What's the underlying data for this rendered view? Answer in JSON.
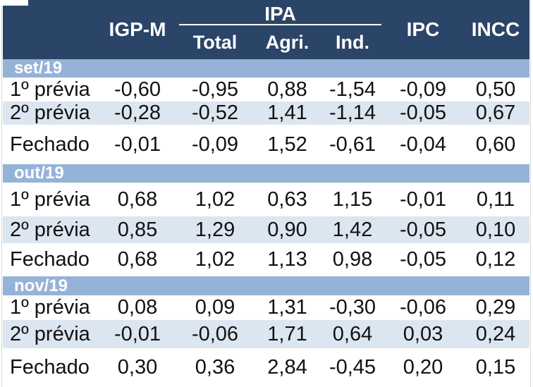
{
  "table": {
    "header": {
      "igpm": "IGP-M",
      "ipa_group": "IPA",
      "ipa_total": "Total",
      "ipa_agri": "Agri.",
      "ipa_ind": "Ind.",
      "ipc": "IPC",
      "incc": "INCC"
    },
    "sections": [
      {
        "month": "set/19",
        "rows": [
          {
            "label": "1º prévia",
            "values": [
              "-0,60",
              "-0,95",
              "0,88",
              "-1,54",
              "-0,09",
              "0,50"
            ]
          },
          {
            "label": "2º prévia",
            "values": [
              "-0,28",
              "-0,52",
              "1,41",
              "-1,14",
              "-0,05",
              "0,67"
            ]
          },
          {
            "label": "Fechado",
            "values": [
              "-0,01",
              "-0,09",
              "1,52",
              "-0,61",
              "-0,04",
              "0,60"
            ]
          }
        ]
      },
      {
        "month": "out/19",
        "rows": [
          {
            "label": "1º prévia",
            "values": [
              "0,68",
              "1,02",
              "0,63",
              "1,15",
              "-0,01",
              "0,11"
            ]
          },
          {
            "label": "2º prévia",
            "values": [
              "0,85",
              "1,29",
              "0,90",
              "1,42",
              "-0,05",
              "0,10"
            ]
          },
          {
            "label": "Fechado",
            "values": [
              "0,68",
              "1,02",
              "1,13",
              "0,98",
              "-0,05",
              "0,12"
            ]
          }
        ]
      },
      {
        "month": "nov/19",
        "rows": [
          {
            "label": "1º prévia",
            "values": [
              "0,08",
              "0,09",
              "1,31",
              "-0,30",
              "-0,06",
              "0,29"
            ]
          },
          {
            "label": "2º prévia",
            "values": [
              "-0,01",
              "-0,06",
              "1,71",
              "0,64",
              "0,03",
              "0,24"
            ]
          },
          {
            "label": "Fechado",
            "values": [
              "0,30",
              "0,36",
              "2,84",
              "-0,45",
              "0,20",
              "0,15"
            ]
          }
        ]
      }
    ],
    "colors": {
      "header_bg": "#2B4568",
      "section_band_bg": "#95B3D7",
      "alt_row_bg": "#DCE6F1",
      "header_text": "#FFFFFF",
      "body_text": "#111111",
      "gridline": "#D9D9D9"
    }
  },
  "chart_data": {
    "type": "table",
    "title": "",
    "column_groups": [
      {
        "label": "IGP-M",
        "span": 1
      },
      {
        "label": "IPA",
        "span": 3,
        "subcolumns": [
          "Total",
          "Agri.",
          "Ind."
        ]
      },
      {
        "label": "IPC",
        "span": 1
      },
      {
        "label": "INCC",
        "span": 1
      }
    ],
    "columns": [
      "IGP-M",
      "IPA Total",
      "IPA Agri.",
      "IPA Ind.",
      "IPC",
      "INCC"
    ],
    "row_groups": [
      {
        "group": "set/19",
        "rows": [
          {
            "label": "1º prévia",
            "values": [
              -0.6,
              -0.95,
              0.88,
              -1.54,
              -0.09,
              0.5
            ]
          },
          {
            "label": "2º prévia",
            "values": [
              -0.28,
              -0.52,
              1.41,
              -1.14,
              -0.05,
              0.67
            ]
          },
          {
            "label": "Fechado",
            "values": [
              -0.01,
              -0.09,
              1.52,
              -0.61,
              -0.04,
              0.6
            ]
          }
        ]
      },
      {
        "group": "out/19",
        "rows": [
          {
            "label": "1º prévia",
            "values": [
              0.68,
              1.02,
              0.63,
              1.15,
              -0.01,
              0.11
            ]
          },
          {
            "label": "2º prévia",
            "values": [
              0.85,
              1.29,
              0.9,
              1.42,
              -0.05,
              0.1
            ]
          },
          {
            "label": "Fechado",
            "values": [
              0.68,
              1.02,
              1.13,
              0.98,
              -0.05,
              0.12
            ]
          }
        ]
      },
      {
        "group": "nov/19",
        "rows": [
          {
            "label": "1º prévia",
            "values": [
              0.08,
              0.09,
              1.31,
              -0.3,
              -0.06,
              0.29
            ]
          },
          {
            "label": "2º prévia",
            "values": [
              -0.01,
              -0.06,
              1.71,
              0.64,
              0.03,
              0.24
            ]
          },
          {
            "label": "Fechado",
            "values": [
              0.3,
              0.36,
              2.84,
              -0.45,
              0.2,
              0.15
            ]
          }
        ]
      }
    ],
    "decimal_separator": ",",
    "layout": {
      "shaded_rows": "2º prévia",
      "group_header_style": "full-width blue band"
    }
  }
}
